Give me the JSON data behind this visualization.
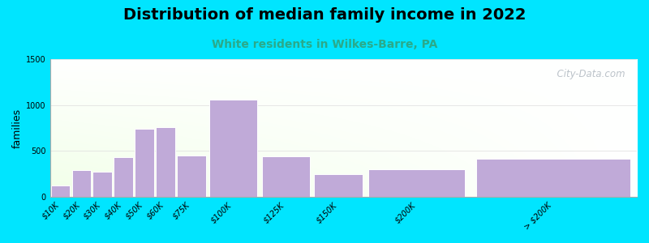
{
  "title": "Distribution of median family income in 2022",
  "subtitle": "White residents in Wilkes-Barre, PA",
  "ylabel": "families",
  "categories": [
    "$10K",
    "$20K",
    "$30K",
    "$40K",
    "$50K",
    "$60K",
    "$75K",
    "$100K",
    "$125K",
    "$150K",
    "$200K",
    "> $200K"
  ],
  "values": [
    120,
    290,
    275,
    430,
    740,
    760,
    450,
    1060,
    440,
    245,
    300,
    415
  ],
  "bar_lefts": [
    0,
    10,
    20,
    30,
    40,
    50,
    60,
    75,
    100,
    125,
    150,
    200
  ],
  "bar_widths": [
    10,
    10,
    10,
    10,
    10,
    10,
    15,
    25,
    25,
    25,
    50,
    80
  ],
  "bar_color": "#c0aad8",
  "bar_edge_color": "#ffffff",
  "background_outer": "#00e5ff",
  "plot_bg_top_left": "#ddf0d8",
  "plot_bg_bottom_right": "#f8f8ff",
  "title_fontsize": 14,
  "subtitle_fontsize": 10,
  "subtitle_color": "#2aaa8a",
  "ylabel_fontsize": 9,
  "tick_fontsize": 7,
  "ylim": [
    0,
    1500
  ],
  "yticks": [
    0,
    500,
    1000,
    1500
  ],
  "xlim": [
    0,
    280
  ],
  "watermark": "  City-Data.com",
  "watermark_color": "#b0b8c0"
}
